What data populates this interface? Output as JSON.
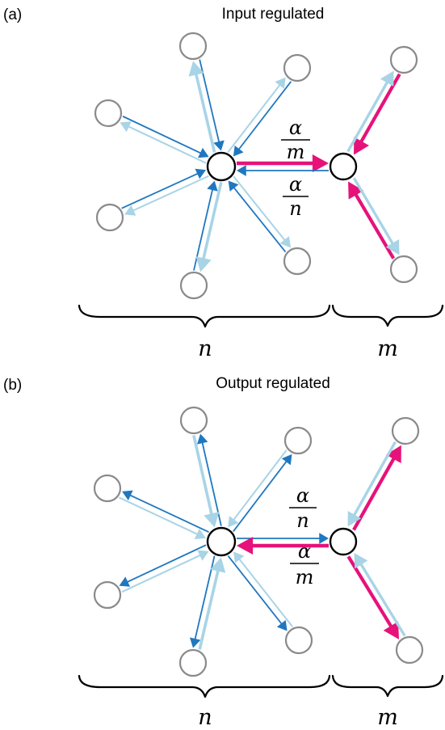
{
  "colors": {
    "dark_blue": "#1f77c0",
    "light_blue": "#a8d4e6",
    "magenta": "#e6127a",
    "node_stroke": "#8a8a8a",
    "hub_stroke": "#000000"
  },
  "panels": [
    {
      "label": "(a)",
      "title": "Input regulated",
      "top_fraction": {
        "num": "α",
        "den": "m"
      },
      "bottom_fraction": {
        "num": "α",
        "den": "n"
      },
      "brace_left_label": "n",
      "brace_right_label": "m"
    },
    {
      "label": "(b)",
      "title": "Output regulated",
      "top_fraction": {
        "num": "α",
        "den": "n"
      },
      "bottom_fraction": {
        "num": "α",
        "den": "m"
      },
      "brace_left_label": "n",
      "brace_right_label": "m"
    }
  ]
}
